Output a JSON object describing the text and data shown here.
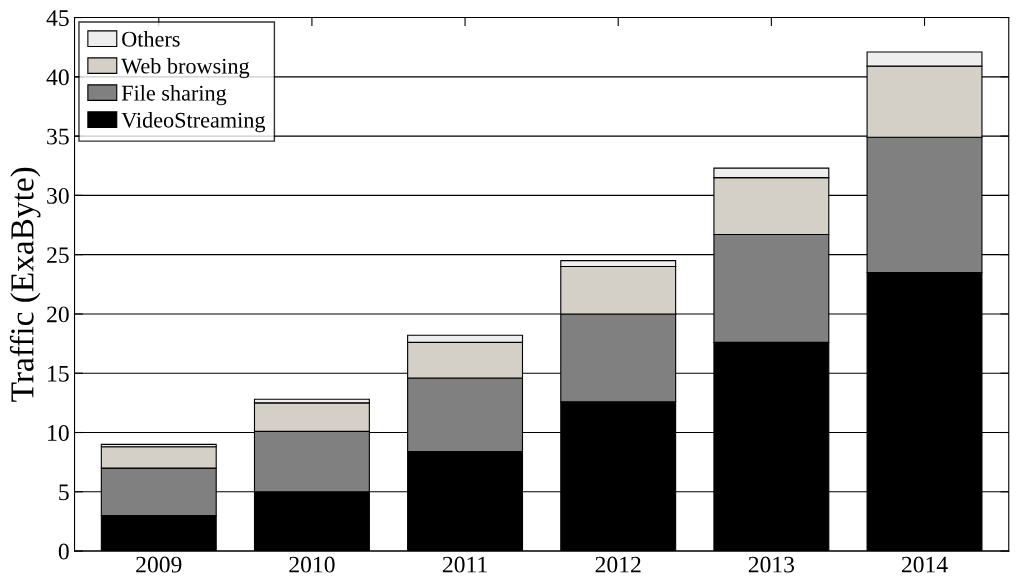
{
  "chart_data": {
    "type": "bar",
    "ylabel": "Traffic (ExaByte)",
    "categories": [
      "2009",
      "2010",
      "2011",
      "2012",
      "2013",
      "2014"
    ],
    "stacked": true,
    "series": [
      {
        "name": "VideoStreaming",
        "color": "#000000",
        "values": [
          3.0,
          5.0,
          8.4,
          12.6,
          17.6,
          23.5
        ]
      },
      {
        "name": "File sharing",
        "color": "#808080",
        "values": [
          4.0,
          5.1,
          6.2,
          7.4,
          9.1,
          11.4
        ]
      },
      {
        "name": "Web browsing",
        "color": "#d4d0c8",
        "values": [
          1.8,
          2.4,
          3.0,
          4.0,
          4.8,
          6.0
        ]
      },
      {
        "name": "Others",
        "color": "#eeeeee",
        "values": [
          0.2,
          0.3,
          0.6,
          0.5,
          0.8,
          1.2
        ]
      }
    ],
    "ylim": [
      0,
      45
    ],
    "yticks": [
      0,
      5,
      10,
      15,
      20,
      25,
      30,
      35,
      40,
      45
    ],
    "grid": "y",
    "legend": "top left"
  }
}
